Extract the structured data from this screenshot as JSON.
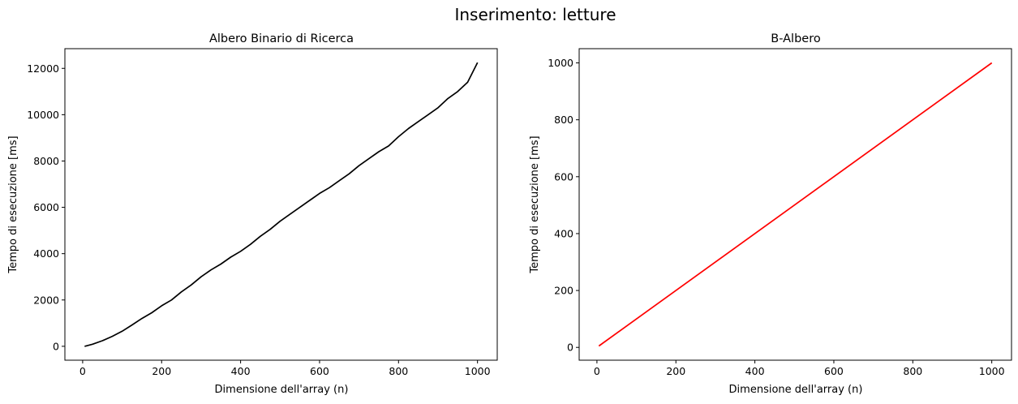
{
  "figure": {
    "suptitle": "Inserimento: letture"
  },
  "chart_data": [
    {
      "type": "line",
      "title": "Albero Binario di Ricerca",
      "xlabel": "Dimensione dell'array (n)",
      "ylabel": "Tempo di esecuzione [ms]",
      "xlim": [
        -45,
        1050
      ],
      "ylim": [
        -600,
        12850
      ],
      "xticks": [
        0,
        200,
        400,
        600,
        800,
        1000
      ],
      "yticks": [
        0,
        2000,
        4000,
        6000,
        8000,
        10000,
        12000
      ],
      "grid": false,
      "series": [
        {
          "color": "#000000",
          "x": [
            5,
            25,
            50,
            75,
            100,
            125,
            150,
            175,
            200,
            225,
            250,
            275,
            300,
            325,
            350,
            375,
            400,
            425,
            450,
            475,
            500,
            525,
            550,
            575,
            600,
            625,
            650,
            675,
            700,
            725,
            750,
            775,
            800,
            825,
            850,
            875,
            900,
            925,
            950,
            975,
            1000
          ],
          "y": [
            0,
            90,
            240,
            430,
            650,
            920,
            1200,
            1450,
            1750,
            2000,
            2350,
            2650,
            3000,
            3300,
            3550,
            3850,
            4100,
            4400,
            4750,
            5050,
            5400,
            5700,
            6000,
            6300,
            6600,
            6850,
            7150,
            7450,
            7800,
            8100,
            8400,
            8650,
            9050,
            9400,
            9700,
            10000,
            10300,
            10700,
            11000,
            11400,
            12250
          ]
        }
      ]
    },
    {
      "type": "line",
      "title": "B-Albero",
      "xlabel": "Dimensione dell'array (n)",
      "ylabel": "Tempo di esecuzione [ms]",
      "xlim": [
        -45,
        1050
      ],
      "ylim": [
        -45,
        1050
      ],
      "xticks": [
        0,
        200,
        400,
        600,
        800,
        1000
      ],
      "yticks": [
        0,
        200,
        400,
        600,
        800,
        1000
      ],
      "grid": false,
      "series": [
        {
          "color": "#ff0000",
          "x": [
            5,
            1000
          ],
          "y": [
            5,
            1000
          ]
        }
      ]
    }
  ]
}
